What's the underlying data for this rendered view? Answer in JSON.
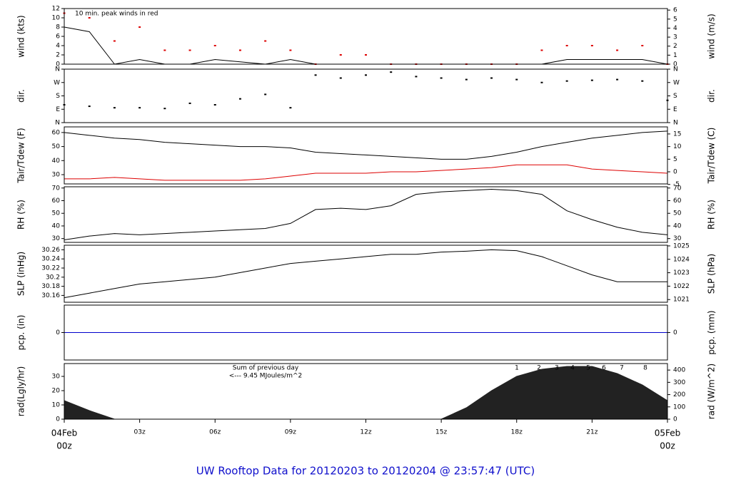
{
  "footer": "UW Rooftop Data for 20120203  to  20120204 @ 23:57:47  (UTC)",
  "x_axis": {
    "xlim": [
      0,
      24
    ],
    "xticks": [
      {
        "value": 0,
        "label": [
          "04Feb",
          "00z"
        ],
        "color": "#dd0000"
      },
      {
        "value": 3,
        "label": "03z"
      },
      {
        "value": 6,
        "label": "06z"
      },
      {
        "value": 9,
        "label": "09z"
      },
      {
        "value": 12,
        "label": "12z"
      },
      {
        "value": 15,
        "label": "15z"
      },
      {
        "value": 18,
        "label": "18z"
      },
      {
        "value": 21,
        "label": "21z"
      },
      {
        "value": 24,
        "label": [
          "05Feb",
          "00z"
        ],
        "color": "#dd0000"
      }
    ]
  },
  "chart_data": [
    {
      "type": "line",
      "ylabel": "wind (kts)",
      "y2label": "wind (m/s)",
      "annotation": "10 min. peak winds in red",
      "ylim": [
        0,
        12
      ],
      "yticks": [
        0,
        2,
        4,
        6,
        8,
        10,
        12
      ],
      "y2lim": [
        0,
        6.17
      ],
      "y2ticks": [
        0,
        1,
        2,
        3,
        4,
        5,
        6
      ],
      "x": [
        0,
        1,
        2,
        3,
        4,
        5,
        6,
        7,
        8,
        9,
        10,
        11,
        12,
        13,
        14,
        15,
        16,
        17,
        18,
        19,
        20,
        21,
        22,
        23,
        24
      ],
      "series": [
        {
          "color": "#000000",
          "values": [
            8,
            7,
            0,
            1,
            0,
            0,
            1,
            0.5,
            0,
            1,
            0,
            0,
            0,
            0,
            0,
            0,
            0,
            0,
            0,
            0,
            1,
            1,
            1,
            1,
            0
          ]
        },
        {
          "color": "#dd0000",
          "marker": true,
          "values": [
            11,
            10,
            5,
            8,
            3,
            3,
            4,
            3,
            5,
            3,
            0,
            2,
            2,
            0,
            0,
            0,
            0,
            0,
            0,
            3,
            4,
            4,
            3,
            4,
            0
          ]
        }
      ]
    },
    {
      "type": "scatter",
      "ylabel": "dir.",
      "y2label": "dir.",
      "ylim": [
        0,
        360
      ],
      "yticks": [
        {
          "value": 0,
          "label": "N"
        },
        {
          "value": 90,
          "label": "E"
        },
        {
          "value": 180,
          "label": "S"
        },
        {
          "value": 270,
          "label": "W"
        },
        {
          "value": 360,
          "label": "N"
        }
      ],
      "y2lim": [
        0,
        360
      ],
      "y2ticks": [
        {
          "value": 0,
          "label": "N"
        },
        {
          "value": 90,
          "label": "E"
        },
        {
          "value": 180,
          "label": "S"
        },
        {
          "value": 270,
          "label": "W"
        },
        {
          "value": 360,
          "label": "N"
        }
      ],
      "x": [
        0,
        1,
        2,
        3,
        4,
        5,
        6,
        7,
        8,
        9,
        10,
        11,
        12,
        13,
        14,
        15,
        16,
        17,
        18,
        19,
        20,
        21,
        22,
        23,
        24
      ],
      "series": [
        {
          "color": "#000000",
          "values": [
            120,
            110,
            100,
            100,
            95,
            130,
            120,
            160,
            190,
            100,
            320,
            300,
            320,
            340,
            310,
            300,
            290,
            300,
            290,
            270,
            280,
            285,
            290,
            280,
            150
          ]
        }
      ]
    },
    {
      "type": "line",
      "ylabel": "Tair/Tdew (F)",
      "y2label": "Tair/Tdew (C)",
      "ylim": [
        23.4,
        64
      ],
      "yticks": [
        30,
        40,
        50,
        60
      ],
      "y2lim": [
        -4.8,
        17.8
      ],
      "y2ticks": [
        -5,
        0,
        5,
        10,
        15
      ],
      "x": [
        0,
        1,
        2,
        3,
        4,
        5,
        6,
        7,
        8,
        9,
        10,
        11,
        12,
        13,
        14,
        15,
        16,
        17,
        18,
        19,
        20,
        21,
        22,
        23,
        24
      ],
      "series": [
        {
          "color": "#000000",
          "values": [
            60,
            58,
            56,
            55,
            53,
            52,
            51,
            50,
            50,
            49,
            46,
            45,
            44,
            43,
            42,
            41,
            41,
            43,
            46,
            50,
            53,
            56,
            58,
            60,
            61
          ]
        },
        {
          "color": "#dd0000",
          "values": [
            27,
            27,
            28,
            27,
            26,
            26,
            26,
            26,
            27,
            29,
            31,
            31,
            31,
            32,
            32,
            33,
            34,
            35,
            37,
            37,
            37,
            34,
            33,
            32,
            31
          ]
        }
      ]
    },
    {
      "type": "line",
      "ylabel": "RH (%)",
      "y2label": "RH (%)",
      "ylim": [
        27,
        71
      ],
      "yticks": [
        30,
        40,
        50,
        60,
        70
      ],
      "y2lim": [
        27,
        71
      ],
      "y2ticks": [
        30,
        40,
        50,
        60,
        70
      ],
      "x": [
        0,
        1,
        2,
        3,
        4,
        5,
        6,
        7,
        8,
        9,
        10,
        11,
        12,
        13,
        14,
        15,
        16,
        17,
        18,
        19,
        20,
        21,
        22,
        23,
        24
      ],
      "series": [
        {
          "color": "#000000",
          "values": [
            29,
            32,
            34,
            33,
            34,
            35,
            36,
            37,
            38,
            42,
            53,
            54,
            53,
            56,
            65,
            67,
            68,
            69,
            68,
            65,
            52,
            45,
            39,
            35,
            33
          ]
        }
      ]
    },
    {
      "type": "line",
      "ylabel": "SLP (inHg)",
      "y2label": "SLP (hPa)",
      "ylim": [
        30.145,
        30.27
      ],
      "yticks": [
        30.16,
        30.18,
        30.2,
        30.22,
        30.24,
        30.26
      ],
      "y2lim": [
        1020.8,
        1025.05
      ],
      "y2ticks": [
        1021,
        1022,
        1023,
        1024,
        1025
      ],
      "x": [
        0,
        1,
        2,
        3,
        4,
        5,
        6,
        7,
        8,
        9,
        10,
        11,
        12,
        13,
        14,
        15,
        16,
        17,
        18,
        19,
        20,
        21,
        22,
        23,
        24
      ],
      "series": [
        {
          "color": "#000000",
          "values": [
            30.155,
            30.165,
            30.175,
            30.185,
            30.19,
            30.195,
            30.2,
            30.21,
            30.22,
            30.23,
            30.235,
            30.24,
            30.245,
            30.25,
            30.25,
            30.255,
            30.257,
            30.26,
            30.258,
            30.245,
            30.225,
            30.205,
            30.19,
            30.19,
            30.19
          ]
        }
      ]
    },
    {
      "type": "line",
      "ylabel": "pcp. (in)",
      "y2label": "pcp. (mm)",
      "ylim": [
        -1,
        1
      ],
      "yticks": [
        0
      ],
      "y2lim": [
        -1,
        1
      ],
      "y2ticks": [
        0
      ],
      "x": [
        0,
        1,
        2,
        3,
        4,
        5,
        6,
        7,
        8,
        9,
        10,
        11,
        12,
        13,
        14,
        15,
        16,
        17,
        18,
        19,
        20,
        21,
        22,
        23,
        24
      ],
      "series": [
        {
          "color": "#0000cc",
          "values": [
            0,
            0,
            0,
            0,
            0,
            0,
            0,
            0,
            0,
            0,
            0,
            0,
            0,
            0,
            0,
            0,
            0,
            0,
            0,
            0,
            0,
            0,
            0,
            0,
            0
          ]
        }
      ]
    },
    {
      "type": "area",
      "ylabel": "rad(Lgly/hr)",
      "y2label": "rad (W/m^2)",
      "annotation": [
        "Sum of previous day",
        "<--- 9.45 MJoules/m^2"
      ],
      "markers": [
        1,
        2,
        3,
        4,
        5,
        6,
        7,
        8
      ],
      "ylim": [
        0,
        39
      ],
      "yticks": [
        0,
        10,
        20,
        30
      ],
      "y2lim": [
        0,
        453
      ],
      "y2ticks": [
        0,
        100,
        200,
        300,
        400
      ],
      "x": [
        0,
        1,
        2,
        3,
        4,
        5,
        6,
        7,
        8,
        9,
        10,
        11,
        12,
        13,
        14,
        15,
        16,
        17,
        18,
        19,
        20,
        21,
        22,
        23,
        24
      ],
      "series": [
        {
          "color": "#222222",
          "values": [
            13,
            6,
            0,
            0,
            0,
            0,
            0,
            0,
            0,
            0,
            0,
            0,
            0,
            0,
            0,
            0,
            8,
            20,
            30,
            35,
            37,
            37,
            32,
            24,
            13
          ]
        }
      ]
    }
  ]
}
